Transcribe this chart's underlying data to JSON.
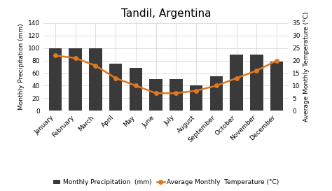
{
  "title": "Tandil, Argentina",
  "months": [
    "January",
    "February",
    "March",
    "April",
    "May",
    "June",
    "July",
    "August",
    "September",
    "October",
    "November",
    "December"
  ],
  "precipitation": [
    100,
    100,
    100,
    75,
    68,
    50,
    50,
    40,
    55,
    90,
    90,
    78
  ],
  "temperature": [
    22,
    21,
    18,
    13,
    10,
    7,
    7,
    8,
    10,
    13,
    16,
    20
  ],
  "bar_color": "#3a3a3a",
  "line_color": "#e07820",
  "marker_color": "#e07820",
  "background_color": "#ffffff",
  "grid_color": "#d0d0d0",
  "precip_ylim": [
    0,
    140
  ],
  "precip_yticks": [
    0,
    20,
    40,
    60,
    80,
    100,
    120,
    140
  ],
  "temp_ylim": [
    0,
    35
  ],
  "temp_yticks": [
    0,
    5,
    10,
    15,
    20,
    25,
    30,
    35
  ],
  "ylabel_left": "Monthly Precipitation (mm)",
  "ylabel_right": "Average Monthly Temperature (°C)",
  "legend_precip": "Monthly Precipitation  (mm)",
  "legend_temp": "Average Monthly  Temperature (°C)",
  "title_fontsize": 11,
  "label_fontsize": 6.5,
  "tick_fontsize": 6.5,
  "legend_fontsize": 6.5
}
